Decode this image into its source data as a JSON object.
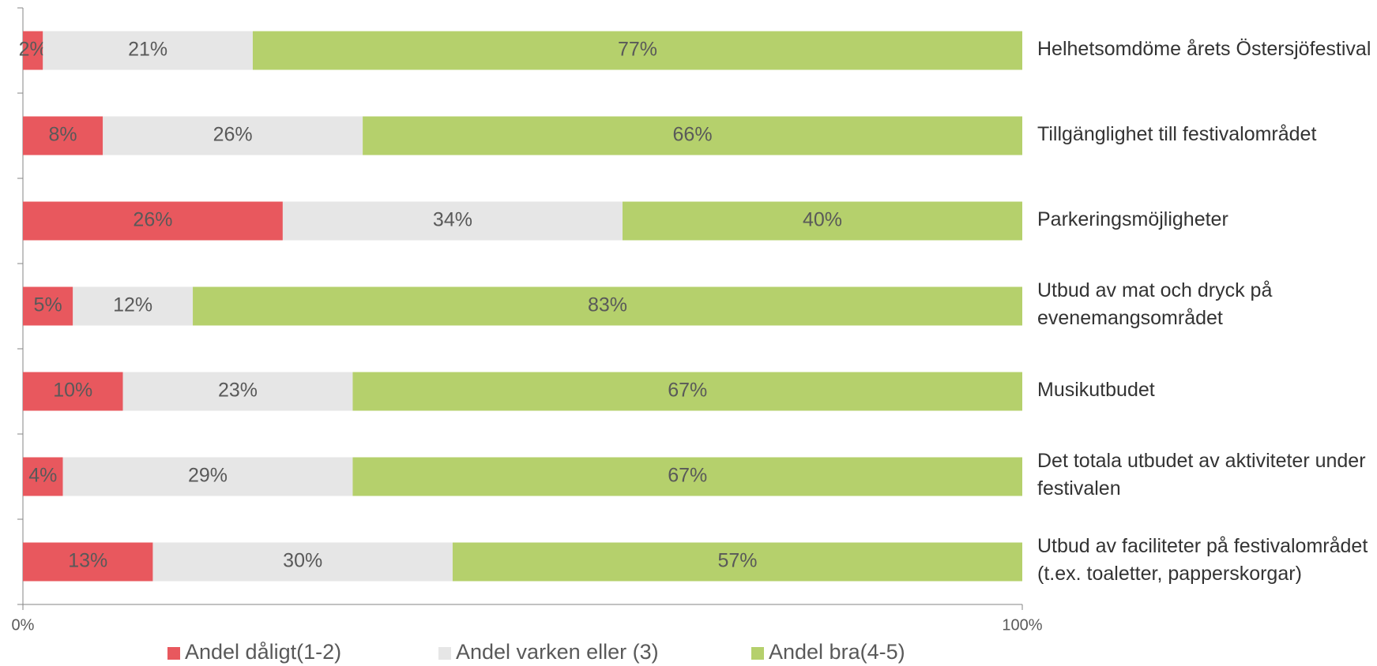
{
  "chart_data": {
    "type": "stacked_barh",
    "categories": [
      "Helhetsomdöme årets Östersjöfestival",
      "Tillgänglighet till festivalområdet",
      "Parkeringsmöjligheter",
      "Utbud av mat och dryck på evenemangsområdet",
      "Musikutbudet",
      "Det totala utbudet av aktiviteter under festivalen",
      "Utbud av faciliteter på festivalområdet (t.ex. toaletter, papperskorgar)"
    ],
    "series": [
      {
        "name": "Andel dåligt(1-2)",
        "color": "#e8585e",
        "values": [
          2,
          8,
          26,
          5,
          10,
          4,
          13
        ],
        "value_labels": [
          "2%",
          "8%",
          "26%",
          "5%",
          "10%",
          "4%",
          "13%"
        ]
      },
      {
        "name": "Andel varken eller (3)",
        "color": "#e6e6e6",
        "values": [
          21,
          26,
          34,
          12,
          23,
          29,
          30
        ],
        "value_labels": [
          "21%",
          "26%",
          "34%",
          "12%",
          "23%",
          "29%",
          "30%"
        ]
      },
      {
        "name": "Andel bra(4-5)",
        "color": "#b5d06c",
        "values": [
          77,
          66,
          40,
          83,
          67,
          67,
          57
        ],
        "value_labels": [
          "77%",
          "66%",
          "40%",
          "83%",
          "67%",
          "67%",
          "57%"
        ]
      }
    ],
    "xlim": [
      0,
      100
    ],
    "xticks": [
      {
        "value": 0,
        "label": "0%"
      },
      {
        "value": 100,
        "label": "100%"
      }
    ],
    "legend": "bottom"
  }
}
